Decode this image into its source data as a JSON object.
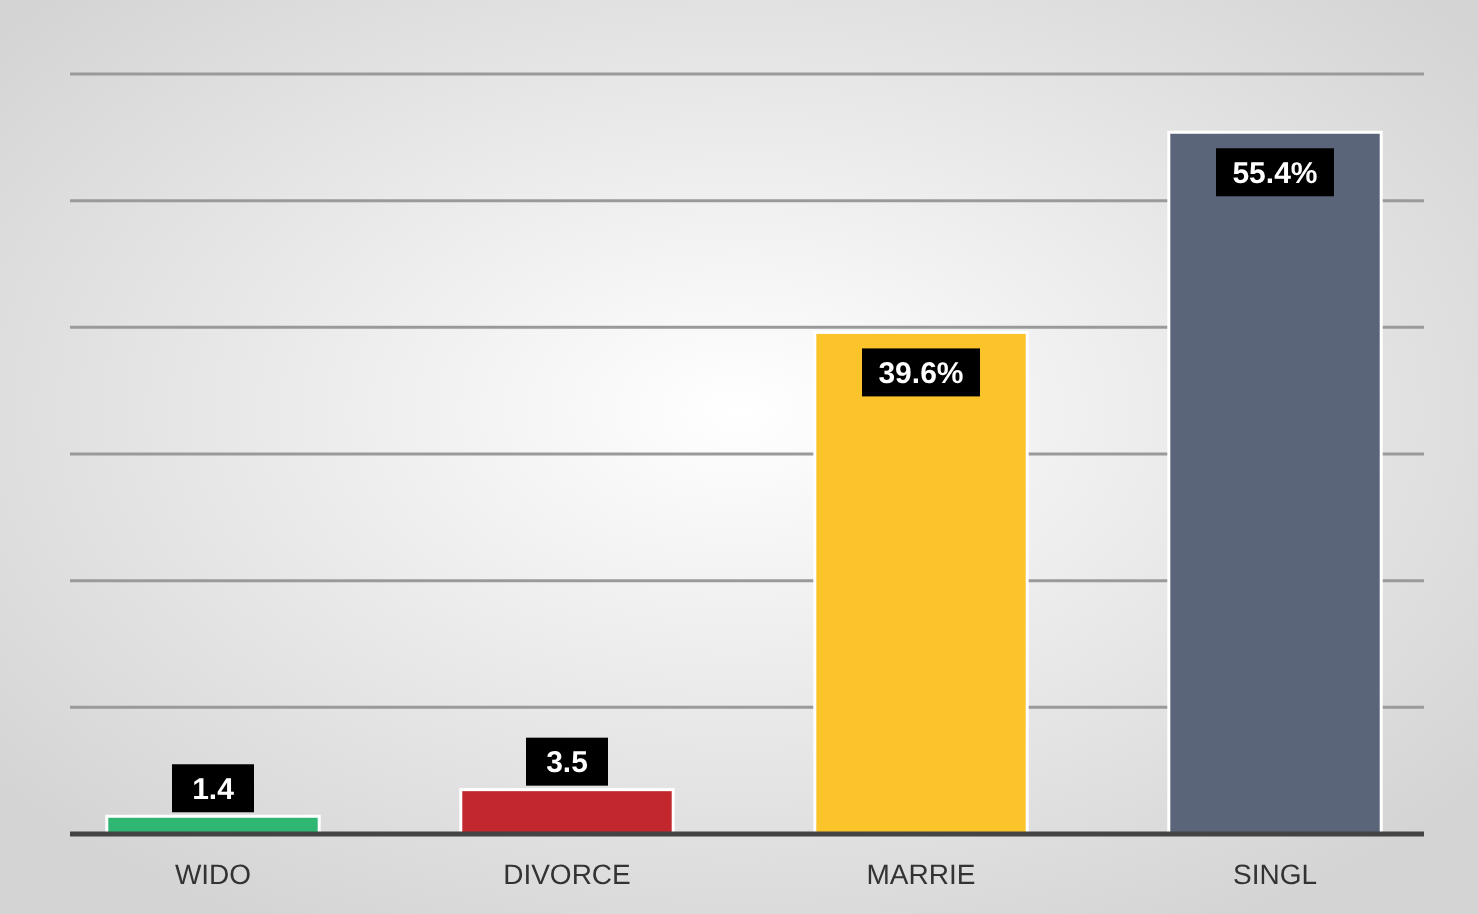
{
  "chart_data": {
    "type": "bar",
    "categories": [
      "WIDO",
      "DIVORCE",
      "MARRIE",
      "SINGL"
    ],
    "values": [
      1.4,
      3.5,
      39.6,
      55.4
    ],
    "colors": [
      "#2fb673",
      "#c1272d",
      "#fcc42b",
      "#5a6579"
    ],
    "value_labels": [
      "1.4",
      "3.5",
      "39.6%",
      "55.4%"
    ],
    "ylim": [
      0,
      60
    ],
    "yticks": [
      {
        "value": 0,
        "label": null
      },
      {
        "value": 10,
        "label": null
      },
      {
        "value": 20,
        "label": null
      },
      {
        "value": 30,
        "label": null
      },
      {
        "value": 40,
        "label": null
      },
      {
        "value": 50,
        "label": null
      },
      {
        "value": 60,
        "label": null
      }
    ],
    "grid": "y",
    "tick_labels": "x"
  }
}
